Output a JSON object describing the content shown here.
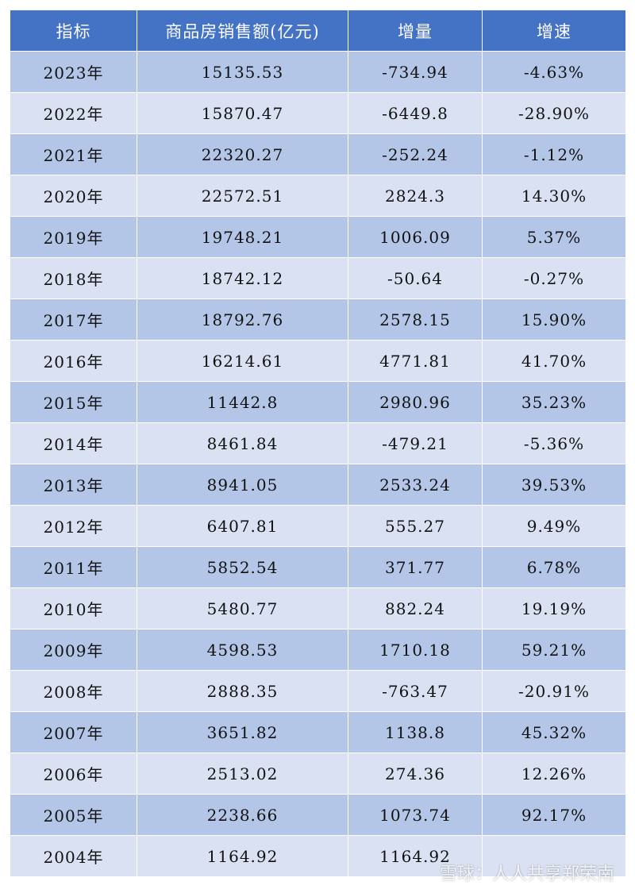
{
  "table": {
    "header": [
      "指标",
      "商品房销售额(亿元)",
      "增量",
      "增速"
    ],
    "rows": [
      [
        "2023年",
        "15135.53",
        "-734.94",
        "-4.63%"
      ],
      [
        "2022年",
        "15870.47",
        "-6449.8",
        "-28.90%"
      ],
      [
        "2021年",
        "22320.27",
        "-252.24",
        "-1.12%"
      ],
      [
        "2020年",
        "22572.51",
        "2824.3",
        "14.30%"
      ],
      [
        "2019年",
        "19748.21",
        "1006.09",
        "5.37%"
      ],
      [
        "2018年",
        "18742.12",
        "-50.64",
        "-0.27%"
      ],
      [
        "2017年",
        "18792.76",
        "2578.15",
        "15.90%"
      ],
      [
        "2016年",
        "16214.61",
        "4771.81",
        "41.70%"
      ],
      [
        "2015年",
        "11442.8",
        "2980.96",
        "35.23%"
      ],
      [
        "2014年",
        "8461.84",
        "-479.21",
        "-5.36%"
      ],
      [
        "2013年",
        "8941.05",
        "2533.24",
        "39.53%"
      ],
      [
        "2012年",
        "6407.81",
        "555.27",
        "9.49%"
      ],
      [
        "2011年",
        "5852.54",
        "371.77",
        "6.78%"
      ],
      [
        "2010年",
        "5480.77",
        "882.24",
        "19.19%"
      ],
      [
        "2009年",
        "4598.53",
        "1710.18",
        "59.21%"
      ],
      [
        "2008年",
        "2888.35",
        "-763.47",
        "-20.91%"
      ],
      [
        "2007年",
        "3651.82",
        "1138.8",
        "45.32%"
      ],
      [
        "2006年",
        "2513.02",
        "274.36",
        "12.26%"
      ],
      [
        "2005年",
        "2238.66",
        "1073.74",
        "92.17%"
      ],
      [
        "2004年",
        "1164.92",
        "1164.92"
      ]
    ]
  },
  "watermark": "雪球：人人共享郑荣南"
}
